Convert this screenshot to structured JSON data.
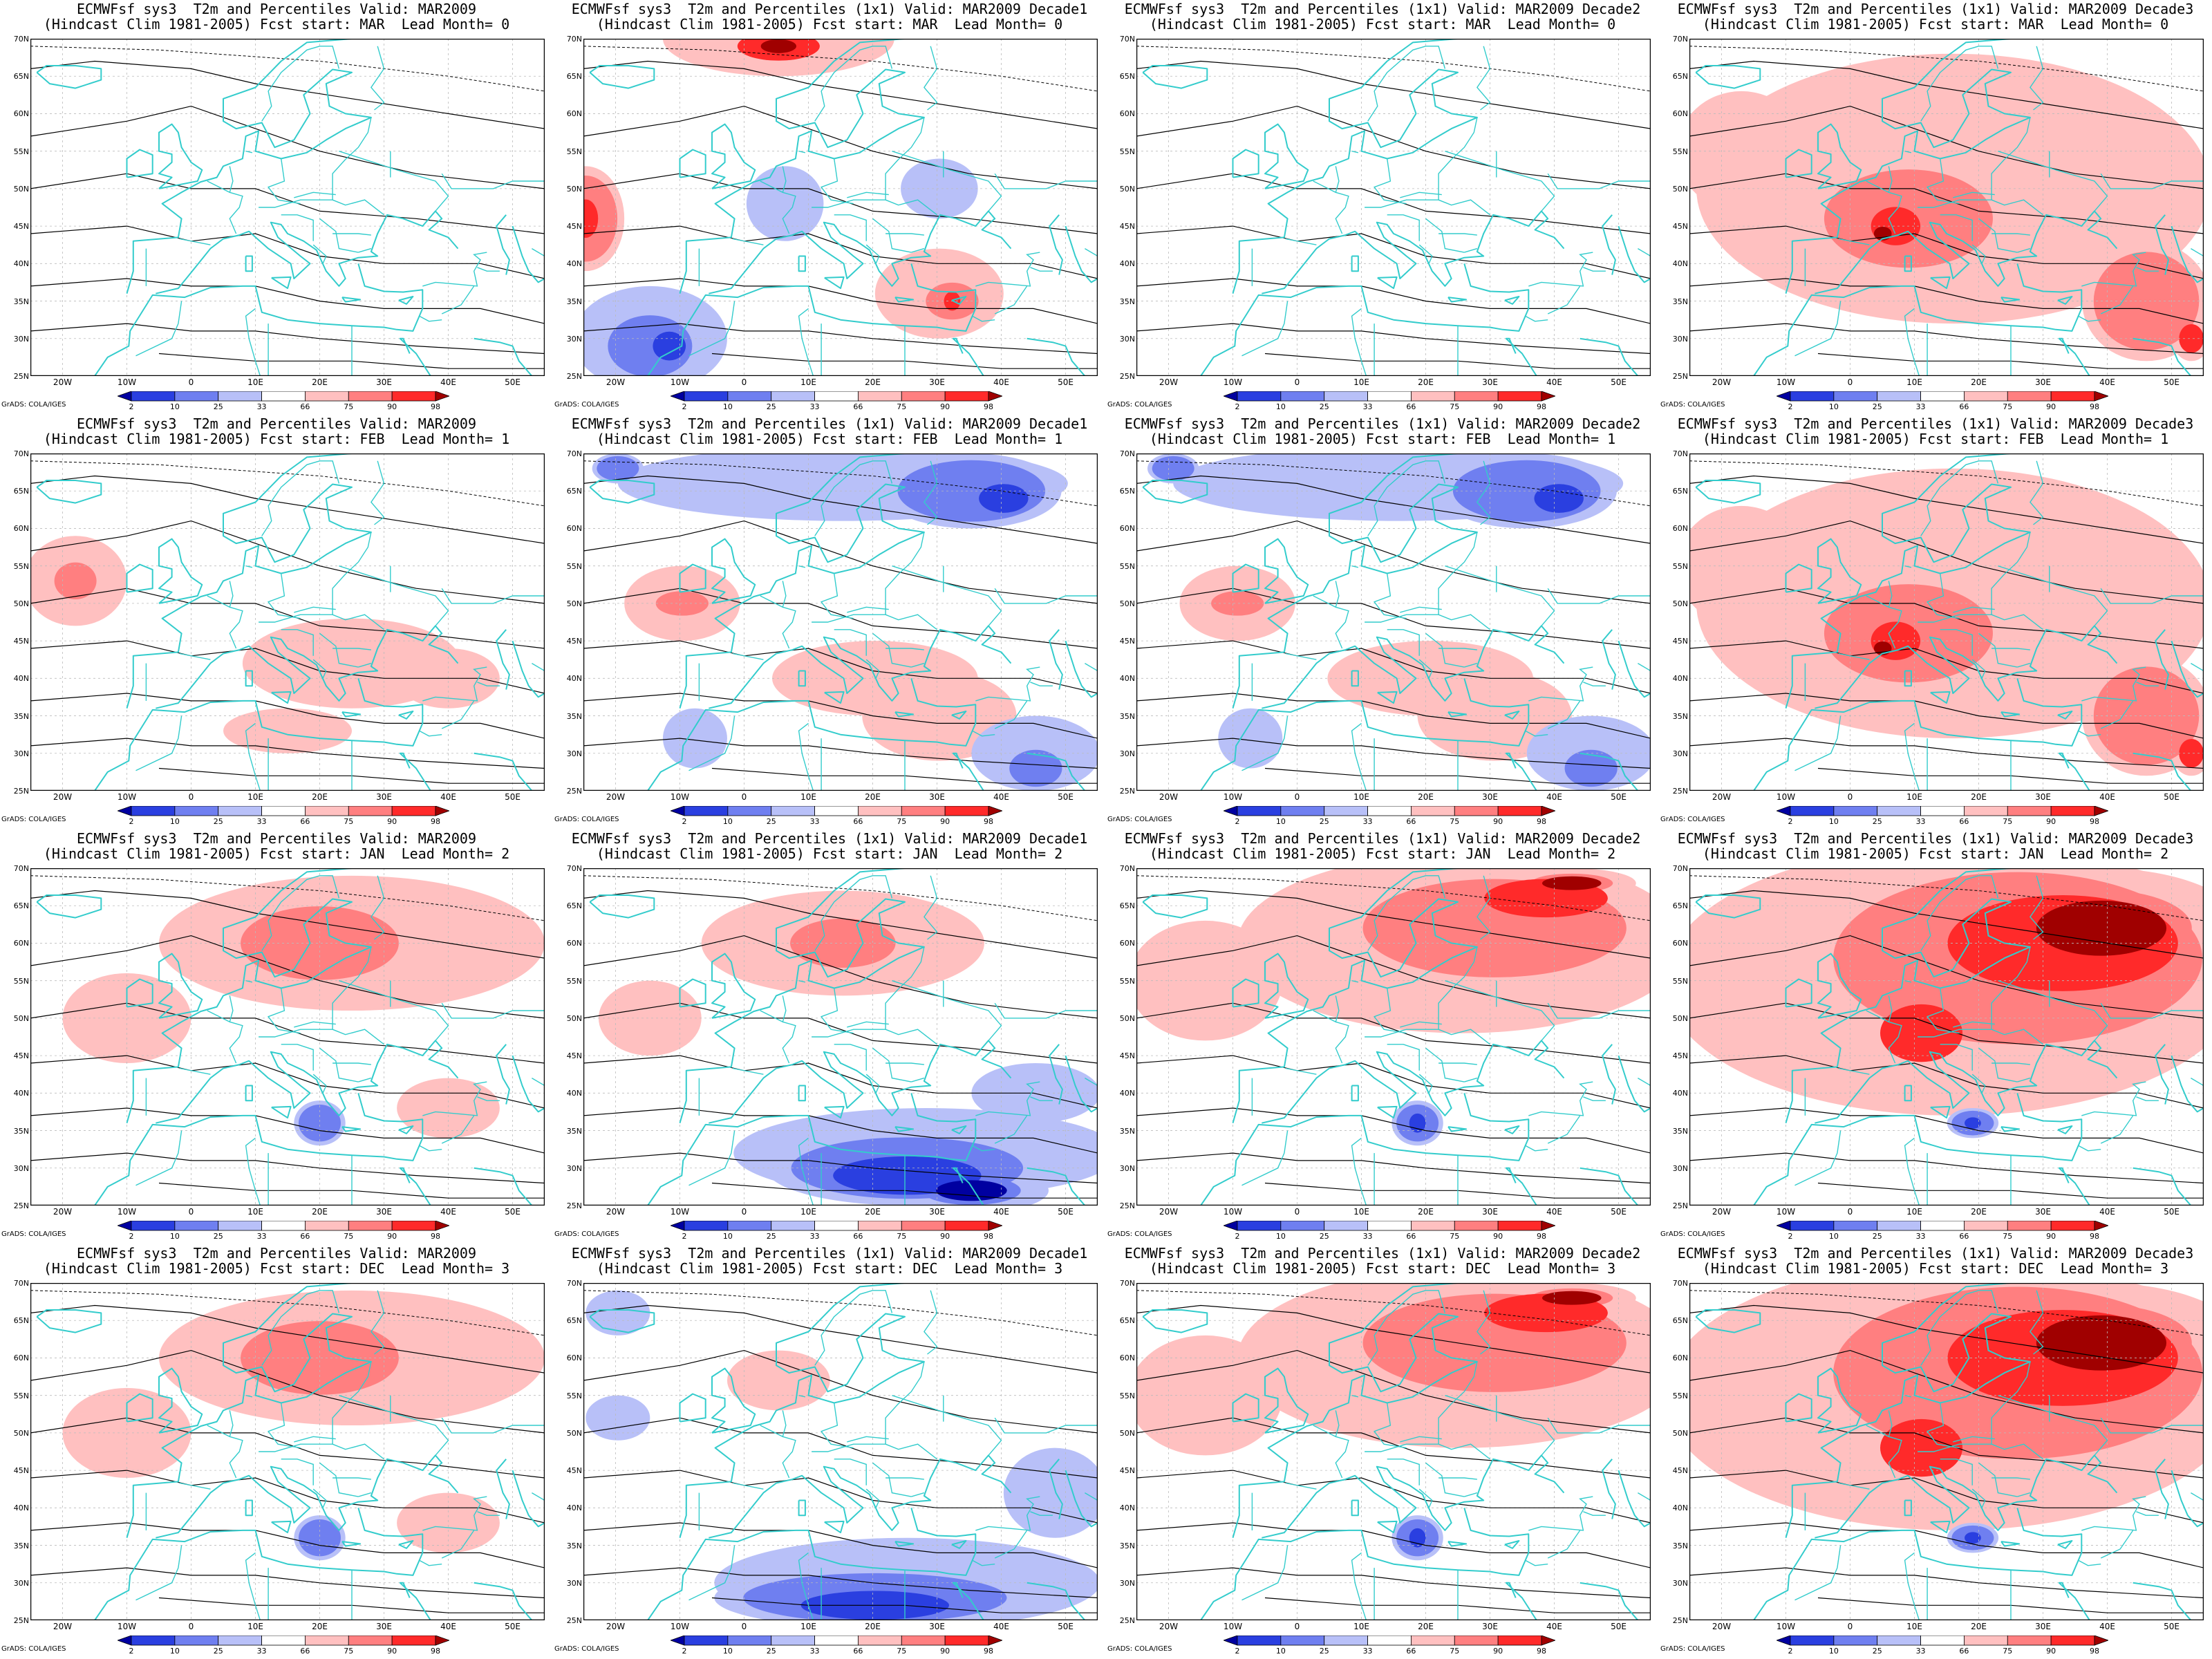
{
  "figure": {
    "columns": 4,
    "rows": 4,
    "panels": [
      {
        "line1": "ECMWFsf sys3  T2m and Percentiles Valid: MAR2009",
        "line2": "(Hindcast Clim 1981-2005) Fcst start: MAR  Lead Month= 0",
        "pattern": "warm-west-east",
        "intensity": 0.55
      },
      {
        "line1": "ECMWFsf sys3  T2m and Percentiles (1x1) Valid: MAR2009 Decade1",
        "line2": "(Hindcast Clim 1981-2005) Fcst start: MAR  Lead Month= 0",
        "pattern": "mixed-north-warm-south-cold",
        "intensity": 0.8
      },
      {
        "line1": "ECMWFsf sys3  T2m and Percentiles (1x1) Valid: MAR2009 Decade2",
        "line2": "(Hindcast Clim 1981-2005) Fcst start: MAR  Lead Month= 0",
        "pattern": "warm-west-east",
        "intensity": 0.7
      },
      {
        "line1": "ECMWFsf sys3  T2m and Percentiles (1x1) Valid: MAR2009 Decade3",
        "line2": "(Hindcast Clim 1981-2005) Fcst start: MAR  Lead Month= 0",
        "pattern": "warm-widespread",
        "intensity": 0.8
      },
      {
        "line1": "ECMWFsf sys3  T2m and Percentiles Valid: MAR2009",
        "line2": "(Hindcast Clim 1981-2005) Fcst start: FEB  Lead Month= 1",
        "pattern": "warm-south",
        "intensity": 0.5
      },
      {
        "line1": "ECMWFsf sys3  T2m and Percentiles (1x1) Valid: MAR2009 Decade1",
        "line2": "(Hindcast Clim 1981-2005) Fcst start: FEB  Lead Month= 1",
        "pattern": "cold-north-warm-south",
        "intensity": 0.8
      },
      {
        "line1": "ECMWFsf sys3  T2m and Percentiles (1x1) Valid: MAR2009 Decade2",
        "line2": "(Hindcast Clim 1981-2005) Fcst start: FEB  Lead Month= 1",
        "pattern": "cold-north-warm-south",
        "intensity": 0.65
      },
      {
        "line1": "ECMWFsf sys3  T2m and Percentiles (1x1) Valid: MAR2009 Decade3",
        "line2": "(Hindcast Clim 1981-2005) Fcst start: FEB  Lead Month= 1",
        "pattern": "warm-widespread",
        "intensity": 0.75
      },
      {
        "line1": "ECMWFsf sys3  T2m and Percentiles Valid: MAR2009",
        "line2": "(Hindcast Clim 1981-2005) Fcst start: JAN  Lead Month= 2",
        "pattern": "warm-north",
        "intensity": 0.55
      },
      {
        "line1": "ECMWFsf sys3  T2m and Percentiles (1x1) Valid: MAR2009 Decade1",
        "line2": "(Hindcast Clim 1981-2005) Fcst start: JAN  Lead Month= 2",
        "pattern": "warm-north-cold-south",
        "intensity": 0.9
      },
      {
        "line1": "ECMWFsf sys3  T2m and Percentiles (1x1) Valid: MAR2009 Decade2",
        "line2": "(Hindcast Clim 1981-2005) Fcst start: JAN  Lead Month= 2",
        "pattern": "warm-north-strong",
        "intensity": 0.85
      },
      {
        "line1": "ECMWFsf sys3  T2m and Percentiles (1x1) Valid: MAR2009 Decade3",
        "line2": "(Hindcast Clim 1981-2005) Fcst start: JAN  Lead Month= 2",
        "pattern": "warm-northeast-extreme",
        "intensity": 1.0
      },
      {
        "line1": "ECMWFsf sys3  T2m and Percentiles Valid: MAR2009",
        "line2": "(Hindcast Clim 1981-2005) Fcst start: DEC  Lead Month= 3",
        "pattern": "warm-north",
        "intensity": 0.55
      },
      {
        "line1": "ECMWFsf sys3  T2m and Percentiles (1x1) Valid: MAR2009 Decade1",
        "line2": "(Hindcast Clim 1981-2005) Fcst start: DEC  Lead Month= 3",
        "pattern": "cold-south",
        "intensity": 0.9
      },
      {
        "line1": "ECMWFsf sys3  T2m and Percentiles (1x1) Valid: MAR2009 Decade2",
        "line2": "(Hindcast Clim 1981-2005) Fcst start: DEC  Lead Month= 3",
        "pattern": "warm-north-strong",
        "intensity": 0.9
      },
      {
        "line1": "ECMWFsf sys3  T2m and Percentiles (1x1) Valid: MAR2009 Decade3",
        "line2": "(Hindcast Clim 1981-2005) Fcst start: DEC  Lead Month= 3",
        "pattern": "warm-northeast-extreme",
        "intensity": 1.0
      }
    ],
    "lat_labels": [
      "70N",
      "65N",
      "60N",
      "55N",
      "50N",
      "45N",
      "40N",
      "35N",
      "30N",
      "25N"
    ],
    "lon_labels": [
      "20W",
      "10W",
      "0",
      "10E",
      "20E",
      "30E",
      "40E",
      "50E"
    ],
    "colorbar": {
      "labels": [
        "2",
        "10",
        "25",
        "33",
        "66",
        "75",
        "90",
        "98"
      ],
      "colors": [
        "#0000a0",
        "#2a3fe0",
        "#6f7ff0",
        "#b8c0f8",
        "#ffffff",
        "#ffc0c0",
        "#ff7f80",
        "#ff2a2a",
        "#a00000"
      ]
    },
    "credit": "GrADS: COLA/IGES",
    "colors": {
      "coast": "#33cccc",
      "contour": "#000000",
      "warm_light": "#ffc0c0",
      "warm_mid": "#ff7f80",
      "warm_strong": "#ff2a2a",
      "warm_extreme": "#a00000",
      "cold_light": "#b8c0f8",
      "cold_mid": "#6f7ff0",
      "cold_strong": "#2a3fe0",
      "cold_extreme": "#0000a0"
    }
  }
}
